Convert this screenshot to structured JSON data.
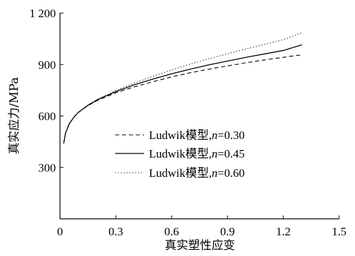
{
  "chart_data": {
    "type": "line",
    "xlabel": "真实塑性应变",
    "ylabel": "真实应力/MPa",
    "xlim": [
      0,
      1.5
    ],
    "ylim": [
      0,
      1200
    ],
    "xticks": [
      0,
      0.3,
      0.6,
      0.9,
      1.2,
      1.5
    ],
    "xtick_labels": [
      "0",
      "0.3",
      "0.6",
      "0.9",
      "1.2",
      "1.5"
    ],
    "yticks": [
      300,
      600,
      900,
      1200
    ],
    "ytick_labels": [
      "300",
      "600",
      "900",
      "1 200"
    ],
    "grid": false,
    "legend_position": "center",
    "series": [
      {
        "name": "Ludwik模型,n=0.30",
        "legend_prefix": "Ludwik模型,",
        "legend_var": "n",
        "legend_value": "=0.30",
        "style": "dashed",
        "x": [
          0.02,
          0.03,
          0.05,
          0.08,
          0.1,
          0.15,
          0.2,
          0.3,
          0.4,
          0.5,
          0.6,
          0.7,
          0.8,
          0.9,
          1.0,
          1.1,
          1.2,
          1.3
        ],
        "y": [
          440,
          500,
          555,
          600,
          622,
          660,
          690,
          735,
          770,
          800,
          828,
          852,
          873,
          892,
          910,
          927,
          942,
          957
        ]
      },
      {
        "name": "Ludwik模型,n=0.45",
        "legend_prefix": "Ludwik模型,",
        "legend_var": "n",
        "legend_value": "=0.45",
        "style": "solid",
        "x": [
          0.02,
          0.03,
          0.05,
          0.08,
          0.1,
          0.15,
          0.2,
          0.3,
          0.4,
          0.5,
          0.6,
          0.7,
          0.8,
          0.9,
          1.0,
          1.1,
          1.2,
          1.3
        ],
        "y": [
          440,
          500,
          555,
          600,
          622,
          662,
          694,
          742,
          782,
          815,
          846,
          873,
          898,
          920,
          942,
          962,
          982,
          1015
        ]
      },
      {
        "name": "Ludwik模型,n=0.60",
        "legend_prefix": "Ludwik模型,",
        "legend_var": "n",
        "legend_value": "=0.60",
        "style": "dotted",
        "x": [
          0.02,
          0.03,
          0.05,
          0.08,
          0.1,
          0.15,
          0.2,
          0.3,
          0.4,
          0.5,
          0.6,
          0.7,
          0.8,
          0.9,
          1.0,
          1.1,
          1.2,
          1.3
        ],
        "y": [
          440,
          500,
          555,
          600,
          622,
          663,
          697,
          748,
          792,
          832,
          868,
          902,
          933,
          963,
          991,
          1018,
          1045,
          1085
        ]
      }
    ]
  }
}
